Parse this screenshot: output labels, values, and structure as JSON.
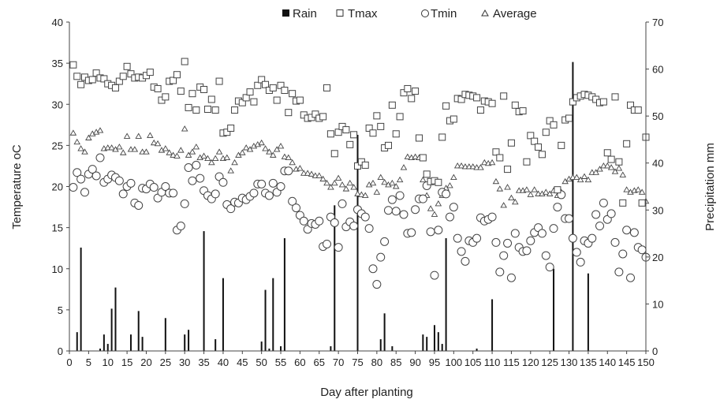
{
  "chart_data": {
    "type": "scatter",
    "xlabel": "Day after planting",
    "ylabel": "Temperature oC",
    "y2label": "Precipitation mm",
    "xlim": [
      0,
      150
    ],
    "ylim": [
      0,
      40
    ],
    "y2lim": [
      0,
      70
    ],
    "x_ticks": [
      0,
      5,
      10,
      15,
      20,
      25,
      30,
      35,
      40,
      45,
      50,
      55,
      60,
      65,
      70,
      75,
      80,
      85,
      90,
      95,
      100,
      105,
      110,
      115,
      120,
      125,
      130,
      135,
      140,
      145,
      150
    ],
    "y_ticks": [
      0,
      5,
      10,
      15,
      20,
      25,
      30,
      35,
      40
    ],
    "y2_ticks": [
      0,
      10,
      20,
      30,
      40,
      50,
      60,
      70
    ],
    "grid": false,
    "legend_position": "top",
    "legend": [
      {
        "label": "Rain",
        "marker": "filled-square"
      },
      {
        "label": "Tmax",
        "marker": "open-square"
      },
      {
        "label": "Tmin",
        "marker": "open-circle"
      },
      {
        "label": "Average",
        "marker": "open-triangle"
      }
    ],
    "series": [
      {
        "name": "Tmax",
        "axis": "left",
        "marker": "square",
        "x": [
          1,
          2,
          3,
          4,
          5,
          6,
          7,
          8,
          9,
          10,
          11,
          12,
          13,
          14,
          15,
          16,
          17,
          18,
          19,
          20,
          21,
          22,
          23,
          24,
          25,
          26,
          27,
          28,
          29,
          30,
          31,
          32,
          33,
          34,
          35,
          36,
          37,
          38,
          39,
          40,
          41,
          42,
          43,
          44,
          45,
          46,
          47,
          48,
          49,
          50,
          51,
          52,
          53,
          54,
          55,
          56,
          57,
          58,
          59,
          60,
          61,
          62,
          63,
          64,
          65,
          66,
          67,
          68,
          69,
          70,
          71,
          72,
          73,
          74,
          75,
          76,
          77,
          78,
          79,
          80,
          81,
          82,
          83,
          84,
          85,
          86,
          87,
          88,
          89,
          90,
          91,
          92,
          93,
          94,
          95,
          96,
          97,
          98,
          99,
          100,
          101,
          102,
          103,
          104,
          105,
          106,
          107,
          108,
          109,
          110,
          111,
          112,
          113,
          114,
          115,
          116,
          117,
          118,
          119,
          120,
          121,
          122,
          123,
          124,
          125,
          126,
          127,
          128,
          129,
          130,
          131,
          132,
          133,
          134,
          135,
          136,
          137,
          138,
          139,
          140,
          141,
          142,
          143,
          144,
          145,
          146,
          147,
          148,
          149,
          150
        ],
        "y": [
          34.8,
          33.4,
          32.4,
          33.3,
          32.9,
          33.0,
          33.8,
          33.2,
          33.1,
          32.5,
          32.3,
          32.0,
          32.8,
          33.4,
          34.6,
          33.7,
          33.2,
          33.3,
          33.2,
          33.5,
          33.9,
          32.1,
          31.9,
          30.5,
          30.9,
          32.8,
          32.9,
          33.6,
          31.6,
          35.2,
          29.6,
          31.3,
          29.3,
          32.1,
          31.8,
          29.4,
          30.6,
          29.3,
          32.8,
          26.5,
          26.6,
          27.1,
          29.3,
          30.4,
          30.2,
          30.8,
          31.5,
          30.3,
          32.3,
          33.0,
          32.4,
          31.7,
          32.0,
          30.5,
          32.3,
          31.7,
          29.0,
          31.3,
          30.4,
          30.5,
          28.7,
          28.3,
          28.4,
          28.8,
          28.3,
          28.5,
          32.0,
          26.4,
          24.0,
          26.6,
          27.3,
          26.9,
          25.1,
          26.3,
          22.5,
          23.0,
          22.6,
          27.1,
          26.5,
          28.6,
          27.3,
          24.7,
          25.0,
          29.9,
          26.4,
          28.5,
          31.4,
          31.9,
          30.7,
          31.6,
          25.9,
          23.5,
          21.5,
          20.6,
          20.7,
          20.5,
          26.0,
          29.8,
          28.0,
          28.2,
          30.7,
          30.6,
          31.2,
          31.1,
          31.0,
          30.8,
          29.3,
          30.4,
          30.3,
          30.1,
          24.2,
          23.5,
          31.0,
          22.1,
          25.3,
          29.9,
          29.1,
          29.2,
          23.0,
          26.2,
          25.5,
          24.8,
          23.9,
          26.6,
          28.0,
          27.5,
          19.6,
          25.0,
          28.1,
          28.3,
          30.3,
          30.8,
          31.0,
          31.2,
          31.1,
          30.9,
          30.6,
          30.2,
          30.3,
          24.1,
          23.3,
          30.9,
          23.0,
          18.0,
          25.2,
          29.9,
          29.3,
          29.3,
          18.0,
          26.0
        ]
      },
      {
        "name": "Tmin",
        "axis": "left",
        "marker": "circle",
        "x": [
          1,
          2,
          3,
          4,
          5,
          6,
          7,
          8,
          9,
          10,
          11,
          12,
          13,
          14,
          15,
          16,
          17,
          18,
          19,
          20,
          21,
          22,
          23,
          24,
          25,
          26,
          27,
          28,
          29,
          30,
          31,
          32,
          33,
          34,
          35,
          36,
          37,
          38,
          39,
          40,
          41,
          42,
          43,
          44,
          45,
          46,
          47,
          48,
          49,
          50,
          51,
          52,
          53,
          54,
          55,
          56,
          57,
          58,
          59,
          60,
          61,
          62,
          63,
          64,
          65,
          66,
          67,
          68,
          69,
          70,
          71,
          72,
          73,
          74,
          75,
          76,
          77,
          78,
          79,
          80,
          81,
          82,
          83,
          84,
          85,
          86,
          87,
          88,
          89,
          90,
          91,
          92,
          93,
          94,
          95,
          96,
          97,
          98,
          99,
          100,
          101,
          102,
          103,
          104,
          105,
          106,
          107,
          108,
          109,
          110,
          111,
          112,
          113,
          114,
          115,
          116,
          117,
          118,
          119,
          120,
          121,
          122,
          123,
          124,
          125,
          126,
          127,
          128,
          129,
          130,
          131,
          132,
          133,
          134,
          135,
          136,
          137,
          138,
          139,
          140,
          141,
          142,
          143,
          144,
          145,
          146,
          147,
          148,
          149,
          150
        ],
        "y": [
          19.9,
          21.7,
          20.9,
          19.3,
          21.5,
          22.1,
          21.3,
          23.5,
          20.5,
          20.9,
          21.4,
          21.1,
          20.7,
          19.1,
          20.0,
          20.4,
          18.0,
          17.7,
          19.8,
          19.7,
          20.3,
          19.9,
          18.6,
          19.3,
          20.0,
          19.2,
          19.2,
          14.7,
          15.2,
          17.9,
          22.3,
          20.7,
          22.6,
          21.0,
          19.5,
          18.9,
          18.5,
          19.1,
          21.2,
          20.5,
          17.8,
          17.3,
          18.1,
          18.0,
          18.6,
          18.4,
          18.8,
          19.2,
          20.3,
          20.3,
          19.2,
          18.9,
          20.4,
          19.3,
          20.0,
          21.9,
          21.9,
          18.2,
          17.4,
          16.5,
          15.8,
          14.8,
          15.5,
          15.4,
          15.8,
          12.7,
          13.0,
          16.3,
          15.6,
          12.6,
          17.9,
          15.1,
          15.7,
          15.2,
          17.2,
          16.7,
          16.3,
          14.9,
          10.0,
          8.1,
          11.4,
          13.3,
          17.1,
          18.4,
          17.0,
          18.9,
          16.6,
          14.3,
          14.4,
          17.2,
          18.5,
          18.5,
          20.1,
          14.5,
          9.2,
          14.7,
          19.3,
          19.1,
          16.3,
          17.5,
          13.7,
          12.1,
          10.9,
          13.4,
          13.2,
          13.7,
          16.2,
          15.8,
          16.0,
          16.3,
          13.2,
          9.6,
          11.6,
          13.1,
          8.9,
          14.3,
          12.6,
          12.1,
          12.2,
          13.4,
          14.4,
          15.0,
          14.3,
          11.6,
          10.2,
          14.9,
          17.5,
          19.0,
          16.1,
          16.1,
          13.7,
          12.0,
          10.8,
          13.4,
          13.1,
          13.7,
          16.6,
          15.2,
          18.0,
          16.0,
          16.7,
          13.2,
          9.6,
          11.8,
          14.7,
          8.9,
          14.4,
          12.6,
          12.3,
          11.4
        ]
      },
      {
        "name": "Average",
        "axis": "left",
        "marker": "triangle",
        "x": [
          1,
          2,
          3,
          4,
          5,
          6,
          7,
          8,
          9,
          10,
          11,
          12,
          13,
          14,
          15,
          16,
          17,
          18,
          19,
          20,
          21,
          22,
          23,
          24,
          25,
          26,
          27,
          28,
          29,
          30,
          31,
          32,
          33,
          34,
          35,
          36,
          37,
          38,
          39,
          40,
          41,
          42,
          43,
          44,
          45,
          46,
          47,
          48,
          49,
          50,
          51,
          52,
          53,
          54,
          55,
          56,
          57,
          58,
          59,
          60,
          61,
          62,
          63,
          64,
          65,
          66,
          67,
          68,
          69,
          70,
          71,
          72,
          73,
          74,
          75,
          76,
          77,
          78,
          79,
          80,
          81,
          82,
          83,
          84,
          85,
          86,
          87,
          88,
          89,
          90,
          91,
          92,
          93,
          94,
          95,
          96,
          97,
          98,
          99,
          100,
          101,
          102,
          103,
          104,
          105,
          106,
          107,
          108,
          109,
          110,
          111,
          112,
          113,
          114,
          115,
          116,
          117,
          118,
          119,
          120,
          121,
          122,
          123,
          124,
          125,
          126,
          127,
          128,
          129,
          130,
          131,
          132,
          133,
          134,
          135,
          136,
          137,
          138,
          139,
          140,
          141,
          142,
          143,
          144,
          145,
          146,
          147,
          148,
          149,
          150
        ],
        "y": [
          26.5,
          25.4,
          24.6,
          24.2,
          25.9,
          26.4,
          26.6,
          26.8,
          24.6,
          24.7,
          24.7,
          24.5,
          24.8,
          24.1,
          26.1,
          24.5,
          24.5,
          26.1,
          24.2,
          24.2,
          26.2,
          25.3,
          25.2,
          24.4,
          24.6,
          24.1,
          23.8,
          23.7,
          24.4,
          27.0,
          23.8,
          24.2,
          24.8,
          23.5,
          23.7,
          23.4,
          22.9,
          23.4,
          24.2,
          23.4,
          23.5,
          21.9,
          22.9,
          23.8,
          24.1,
          24.7,
          24.5,
          24.9,
          25.1,
          25.3,
          24.6,
          24.2,
          23.8,
          24.5,
          24.9,
          23.6,
          23.5,
          22.9,
          22.1,
          22.2,
          21.6,
          21.6,
          21.5,
          21.3,
          21.3,
          20.9,
          20.4,
          19.9,
          20.4,
          21.0,
          20.2,
          19.7,
          20.4,
          19.9,
          19.1,
          19.0,
          18.9,
          20.2,
          20.4,
          19.3,
          21.1,
          20.5,
          20.2,
          20.4,
          20.0,
          20.8,
          22.3,
          23.6,
          23.5,
          23.6,
          23.5,
          20.8,
          18.9,
          17.3,
          16.6,
          17.9,
          18.9,
          19.8,
          20.1,
          21.1,
          22.5,
          22.5,
          22.4,
          22.4,
          22.4,
          22.3,
          22.3,
          22.9,
          22.8,
          22.9,
          20.6,
          19.7,
          17.7,
          19.9,
          18.6,
          18.1,
          19.5,
          19.5,
          19.6,
          19.0,
          19.6,
          19.1,
          19.1,
          19.3,
          19.1,
          19.5,
          18.9,
          19.3,
          20.6,
          20.9,
          21.1,
          21.1,
          20.8,
          21.2,
          20.8,
          21.7,
          21.7,
          22.1,
          22.5,
          22.5,
          22.3,
          21.8,
          22.2,
          21.4,
          19.6,
          19.3,
          19.5,
          19.6,
          19.3,
          18.2
        ]
      },
      {
        "name": "Rain",
        "axis": "right",
        "type": "bar",
        "x": [
          2,
          3,
          8,
          9,
          10,
          11,
          12,
          16,
          18,
          19,
          25,
          30,
          31,
          35,
          38,
          40,
          50,
          51,
          52,
          53,
          55,
          56,
          68,
          69,
          75,
          81,
          82,
          84,
          92,
          93,
          95,
          96,
          97,
          98,
          106,
          110,
          126,
          131,
          135
        ],
        "y": [
          4.0,
          22.0,
          0.5,
          3.5,
          1.5,
          9.0,
          13.5,
          3.5,
          8.5,
          3.0,
          7.0,
          3.5,
          4.5,
          25.5,
          2.5,
          15.5,
          2.0,
          13.0,
          0.5,
          15.5,
          1.0,
          24.0,
          1.0,
          31.0,
          46.0,
          2.5,
          8.0,
          1.0,
          3.5,
          3.0,
          5.5,
          4.0,
          1.5,
          24.0,
          0.5,
          11.0,
          17.5,
          61.5,
          16.5
        ]
      }
    ]
  }
}
